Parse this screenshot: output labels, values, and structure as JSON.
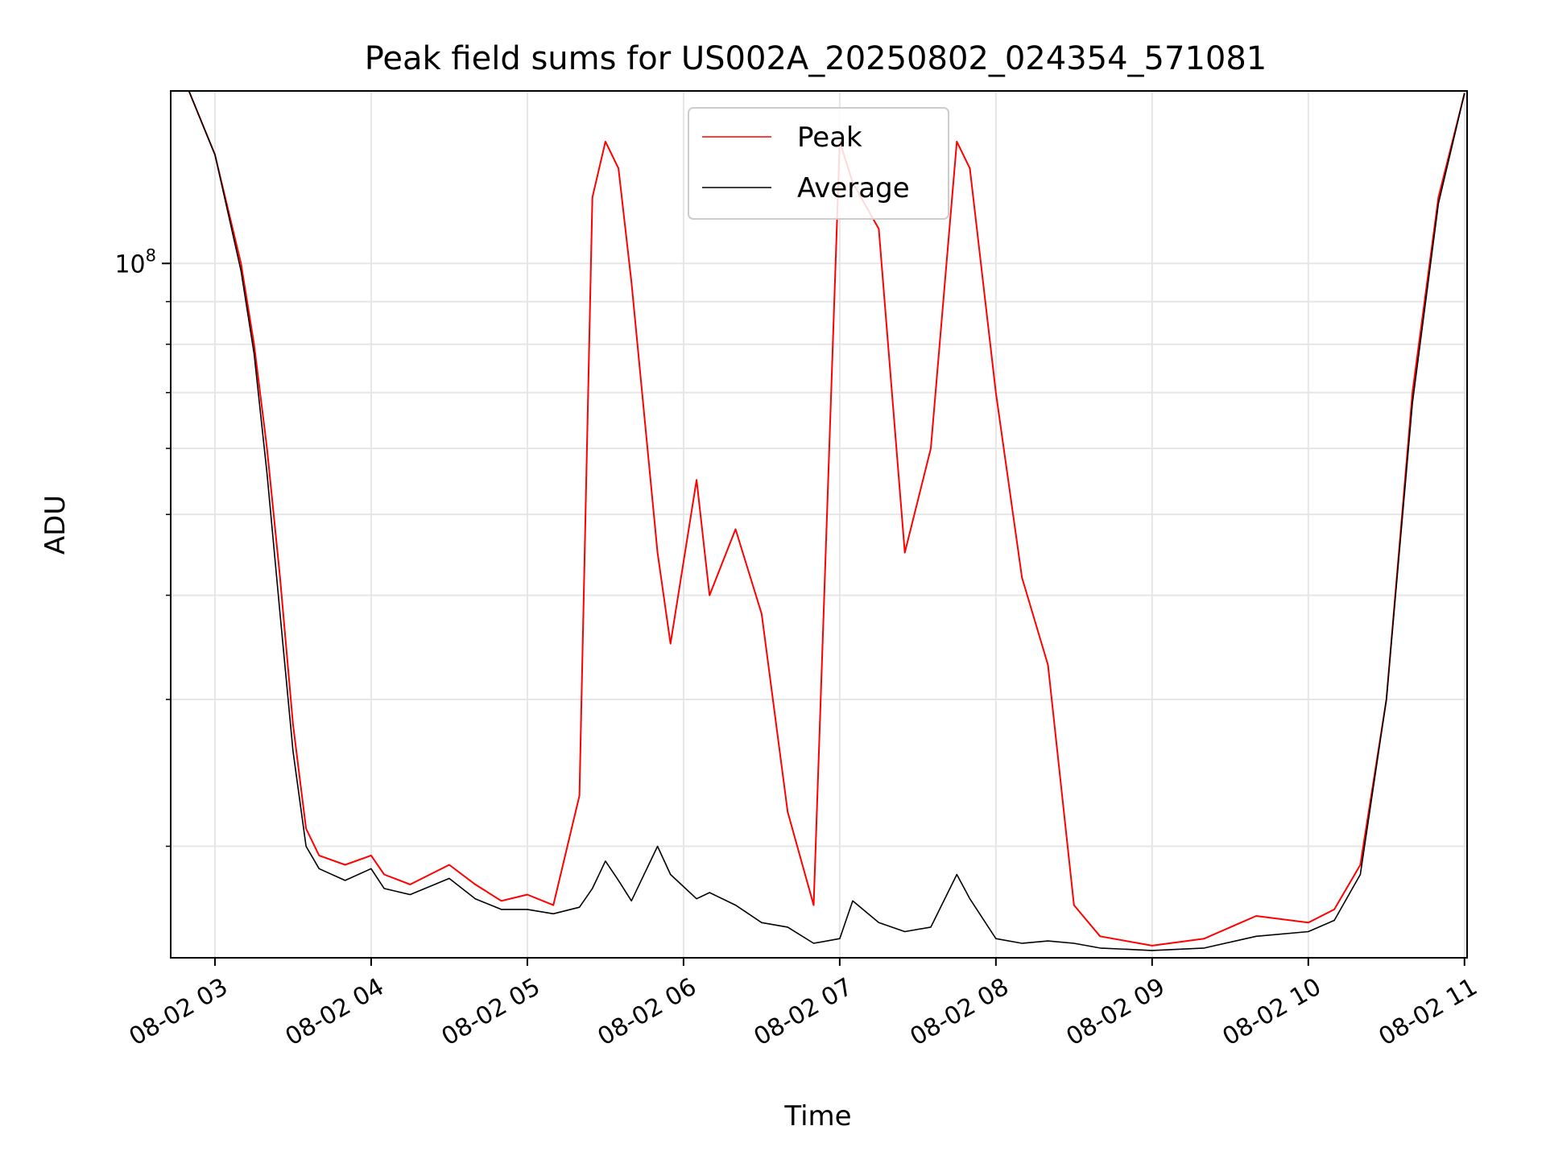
{
  "chart_data": {
    "type": "line",
    "title": "Peak field sums for US002A_20250802_024354_571081",
    "xlabel": "Time",
    "ylabel": "ADU",
    "y_scale": "log",
    "ylim": [
      14700000,
      161000000
    ],
    "xlim": [
      "2025-08-02 02:43",
      "2025-08-02 11:01"
    ],
    "grid": true,
    "legend_position": "top-center",
    "x_ticks": [
      {
        "t": "2025-08-02 03:00",
        "label": "08-02 03"
      },
      {
        "t": "2025-08-02 04:00",
        "label": "08-02 04"
      },
      {
        "t": "2025-08-02 05:00",
        "label": "08-02 05"
      },
      {
        "t": "2025-08-02 06:00",
        "label": "08-02 06"
      },
      {
        "t": "2025-08-02 07:00",
        "label": "08-02 07"
      },
      {
        "t": "2025-08-02 08:00",
        "label": "08-02 08"
      },
      {
        "t": "2025-08-02 09:00",
        "label": "08-02 09"
      },
      {
        "t": "2025-08-02 10:00",
        "label": "08-02 10"
      },
      {
        "t": "2025-08-02 11:00",
        "label": "08-02 11"
      }
    ],
    "y_major_ticks": [
      {
        "value": 100000000,
        "base": "10",
        "exp": "8"
      }
    ],
    "y_minor_ticks": [
      20000000,
      30000000,
      40000000,
      50000000,
      60000000,
      70000000,
      80000000,
      90000000
    ],
    "series": [
      {
        "name": "Peak",
        "color": "#ff0000",
        "x": [
          "2025-08-02 02:43",
          "2025-08-02 02:50",
          "2025-08-02 03:00",
          "2025-08-02 03:10",
          "2025-08-02 03:15",
          "2025-08-02 03:20",
          "2025-08-02 03:25",
          "2025-08-02 03:30",
          "2025-08-02 03:35",
          "2025-08-02 03:40",
          "2025-08-02 03:50",
          "2025-08-02 04:00",
          "2025-08-02 04:05",
          "2025-08-02 04:15",
          "2025-08-02 04:30",
          "2025-08-02 04:40",
          "2025-08-02 04:50",
          "2025-08-02 05:00",
          "2025-08-02 05:10",
          "2025-08-02 05:20",
          "2025-08-02 05:25",
          "2025-08-02 05:30",
          "2025-08-02 05:35",
          "2025-08-02 05:40",
          "2025-08-02 05:50",
          "2025-08-02 05:55",
          "2025-08-02 06:05",
          "2025-08-02 06:10",
          "2025-08-02 06:20",
          "2025-08-02 06:30",
          "2025-08-02 06:40",
          "2025-08-02 06:50",
          "2025-08-02 07:00",
          "2025-08-02 07:05",
          "2025-08-02 07:15",
          "2025-08-02 07:25",
          "2025-08-02 07:35",
          "2025-08-02 07:45",
          "2025-08-02 07:50",
          "2025-08-02 08:00",
          "2025-08-02 08:10",
          "2025-08-02 08:20",
          "2025-08-02 08:30",
          "2025-08-02 08:40",
          "2025-08-02 09:00",
          "2025-08-02 09:20",
          "2025-08-02 09:40",
          "2025-08-02 10:00",
          "2025-08-02 10:10",
          "2025-08-02 10:20",
          "2025-08-02 10:30",
          "2025-08-02 10:40",
          "2025-08-02 10:50",
          "2025-08-02 11:00"
        ],
        "values": [
          161000000,
          161000000,
          135000000,
          100000000,
          80000000,
          60000000,
          42000000,
          28000000,
          21000000,
          19500000,
          19000000,
          19500000,
          18500000,
          18000000,
          19000000,
          18000000,
          17200000,
          17500000,
          17000000,
          23000000,
          120000000,
          140000000,
          130000000,
          95000000,
          45000000,
          35000000,
          55000000,
          40000000,
          48000000,
          38000000,
          22000000,
          17000000,
          140000000,
          125000000,
          110000000,
          45000000,
          60000000,
          140000000,
          130000000,
          70000000,
          42000000,
          33000000,
          17000000,
          15600000,
          15200000,
          15500000,
          16500000,
          16200000,
          16800000,
          19000000,
          30000000,
          70000000,
          120000000,
          160000000
        ]
      },
      {
        "name": "Average",
        "color": "#000000",
        "x": [
          "2025-08-02 02:43",
          "2025-08-02 02:50",
          "2025-08-02 03:00",
          "2025-08-02 03:10",
          "2025-08-02 03:15",
          "2025-08-02 03:20",
          "2025-08-02 03:25",
          "2025-08-02 03:30",
          "2025-08-02 03:35",
          "2025-08-02 03:40",
          "2025-08-02 03:50",
          "2025-08-02 04:00",
          "2025-08-02 04:05",
          "2025-08-02 04:15",
          "2025-08-02 04:30",
          "2025-08-02 04:40",
          "2025-08-02 04:50",
          "2025-08-02 05:00",
          "2025-08-02 05:10",
          "2025-08-02 05:20",
          "2025-08-02 05:25",
          "2025-08-02 05:30",
          "2025-08-02 05:35",
          "2025-08-02 05:40",
          "2025-08-02 05:50",
          "2025-08-02 05:55",
          "2025-08-02 06:05",
          "2025-08-02 06:10",
          "2025-08-02 06:20",
          "2025-08-02 06:30",
          "2025-08-02 06:40",
          "2025-08-02 06:50",
          "2025-08-02 07:00",
          "2025-08-02 07:05",
          "2025-08-02 07:15",
          "2025-08-02 07:25",
          "2025-08-02 07:35",
          "2025-08-02 07:45",
          "2025-08-02 07:50",
          "2025-08-02 08:00",
          "2025-08-02 08:10",
          "2025-08-02 08:20",
          "2025-08-02 08:30",
          "2025-08-02 08:40",
          "2025-08-02 09:00",
          "2025-08-02 09:20",
          "2025-08-02 09:40",
          "2025-08-02 10:00",
          "2025-08-02 10:10",
          "2025-08-02 10:20",
          "2025-08-02 10:30",
          "2025-08-02 10:40",
          "2025-08-02 10:50",
          "2025-08-02 11:00"
        ],
        "values": [
          161000000,
          161000000,
          135000000,
          98000000,
          78000000,
          56000000,
          38000000,
          26000000,
          20000000,
          18800000,
          18200000,
          18800000,
          17800000,
          17500000,
          18300000,
          17300000,
          16800000,
          16800000,
          16600000,
          16900000,
          17800000,
          19200000,
          18200000,
          17200000,
          20000000,
          18500000,
          17300000,
          17600000,
          17000000,
          16200000,
          16000000,
          15300000,
          15500000,
          17200000,
          16200000,
          15800000,
          16000000,
          18500000,
          17300000,
          15500000,
          15300000,
          15400000,
          15300000,
          15100000,
          15000000,
          15100000,
          15600000,
          15800000,
          16300000,
          18500000,
          30000000,
          68000000,
          118000000,
          160000000
        ]
      }
    ]
  }
}
